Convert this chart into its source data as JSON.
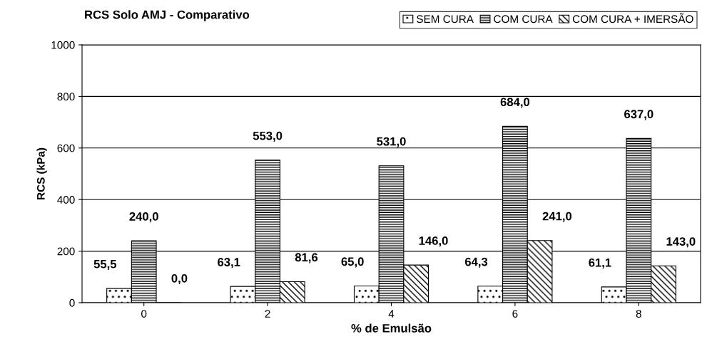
{
  "chart_data": {
    "type": "bar",
    "title": "RCS Solo AMJ - Comparativo",
    "xlabel": "% de Emulsão",
    "ylabel": "RCS (kPa)",
    "categories": [
      "0",
      "2",
      "4",
      "6",
      "8"
    ],
    "series": [
      {
        "name": "SEM CURA",
        "color": "#000000",
        "values": [
          55.5,
          63.1,
          65.0,
          64.3,
          61.1
        ],
        "value_labels": [
          "55,5",
          "63,1",
          "65,0",
          "64,3",
          "61,1"
        ]
      },
      {
        "name": "COM CURA",
        "color": "#000000",
        "values": [
          240.0,
          553.0,
          531.0,
          684.0,
          637.0
        ],
        "value_labels": [
          "240,0",
          "553,0",
          "531,0",
          "684,0",
          "637,0"
        ]
      },
      {
        "name": "COM CURA + IMERSÃO",
        "color": "#000000",
        "values": [
          0.0,
          81.6,
          146.0,
          241.0,
          143.0
        ],
        "value_labels": [
          "0,0",
          "81,6",
          "146,0",
          "241,0",
          "143,0"
        ]
      }
    ],
    "ylim": [
      0,
      1000
    ],
    "yticks": [
      0,
      200,
      400,
      600,
      800,
      1000
    ],
    "grid": "y",
    "legend": "top right"
  }
}
